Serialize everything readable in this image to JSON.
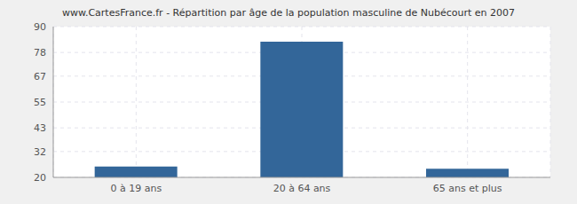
{
  "chart_data": {
    "type": "bar",
    "title": "www.CartesFrance.fr - Répartition par âge de la population masculine de Nubécourt en 2007",
    "categories": [
      "0 à 19 ans",
      "20 à 64 ans",
      "65 ans et plus"
    ],
    "values": [
      25,
      83,
      24
    ],
    "color": "#336699",
    "ylim": [
      20,
      90
    ],
    "yticks": [
      20,
      32,
      43,
      55,
      67,
      78,
      90
    ],
    "grid": true
  }
}
